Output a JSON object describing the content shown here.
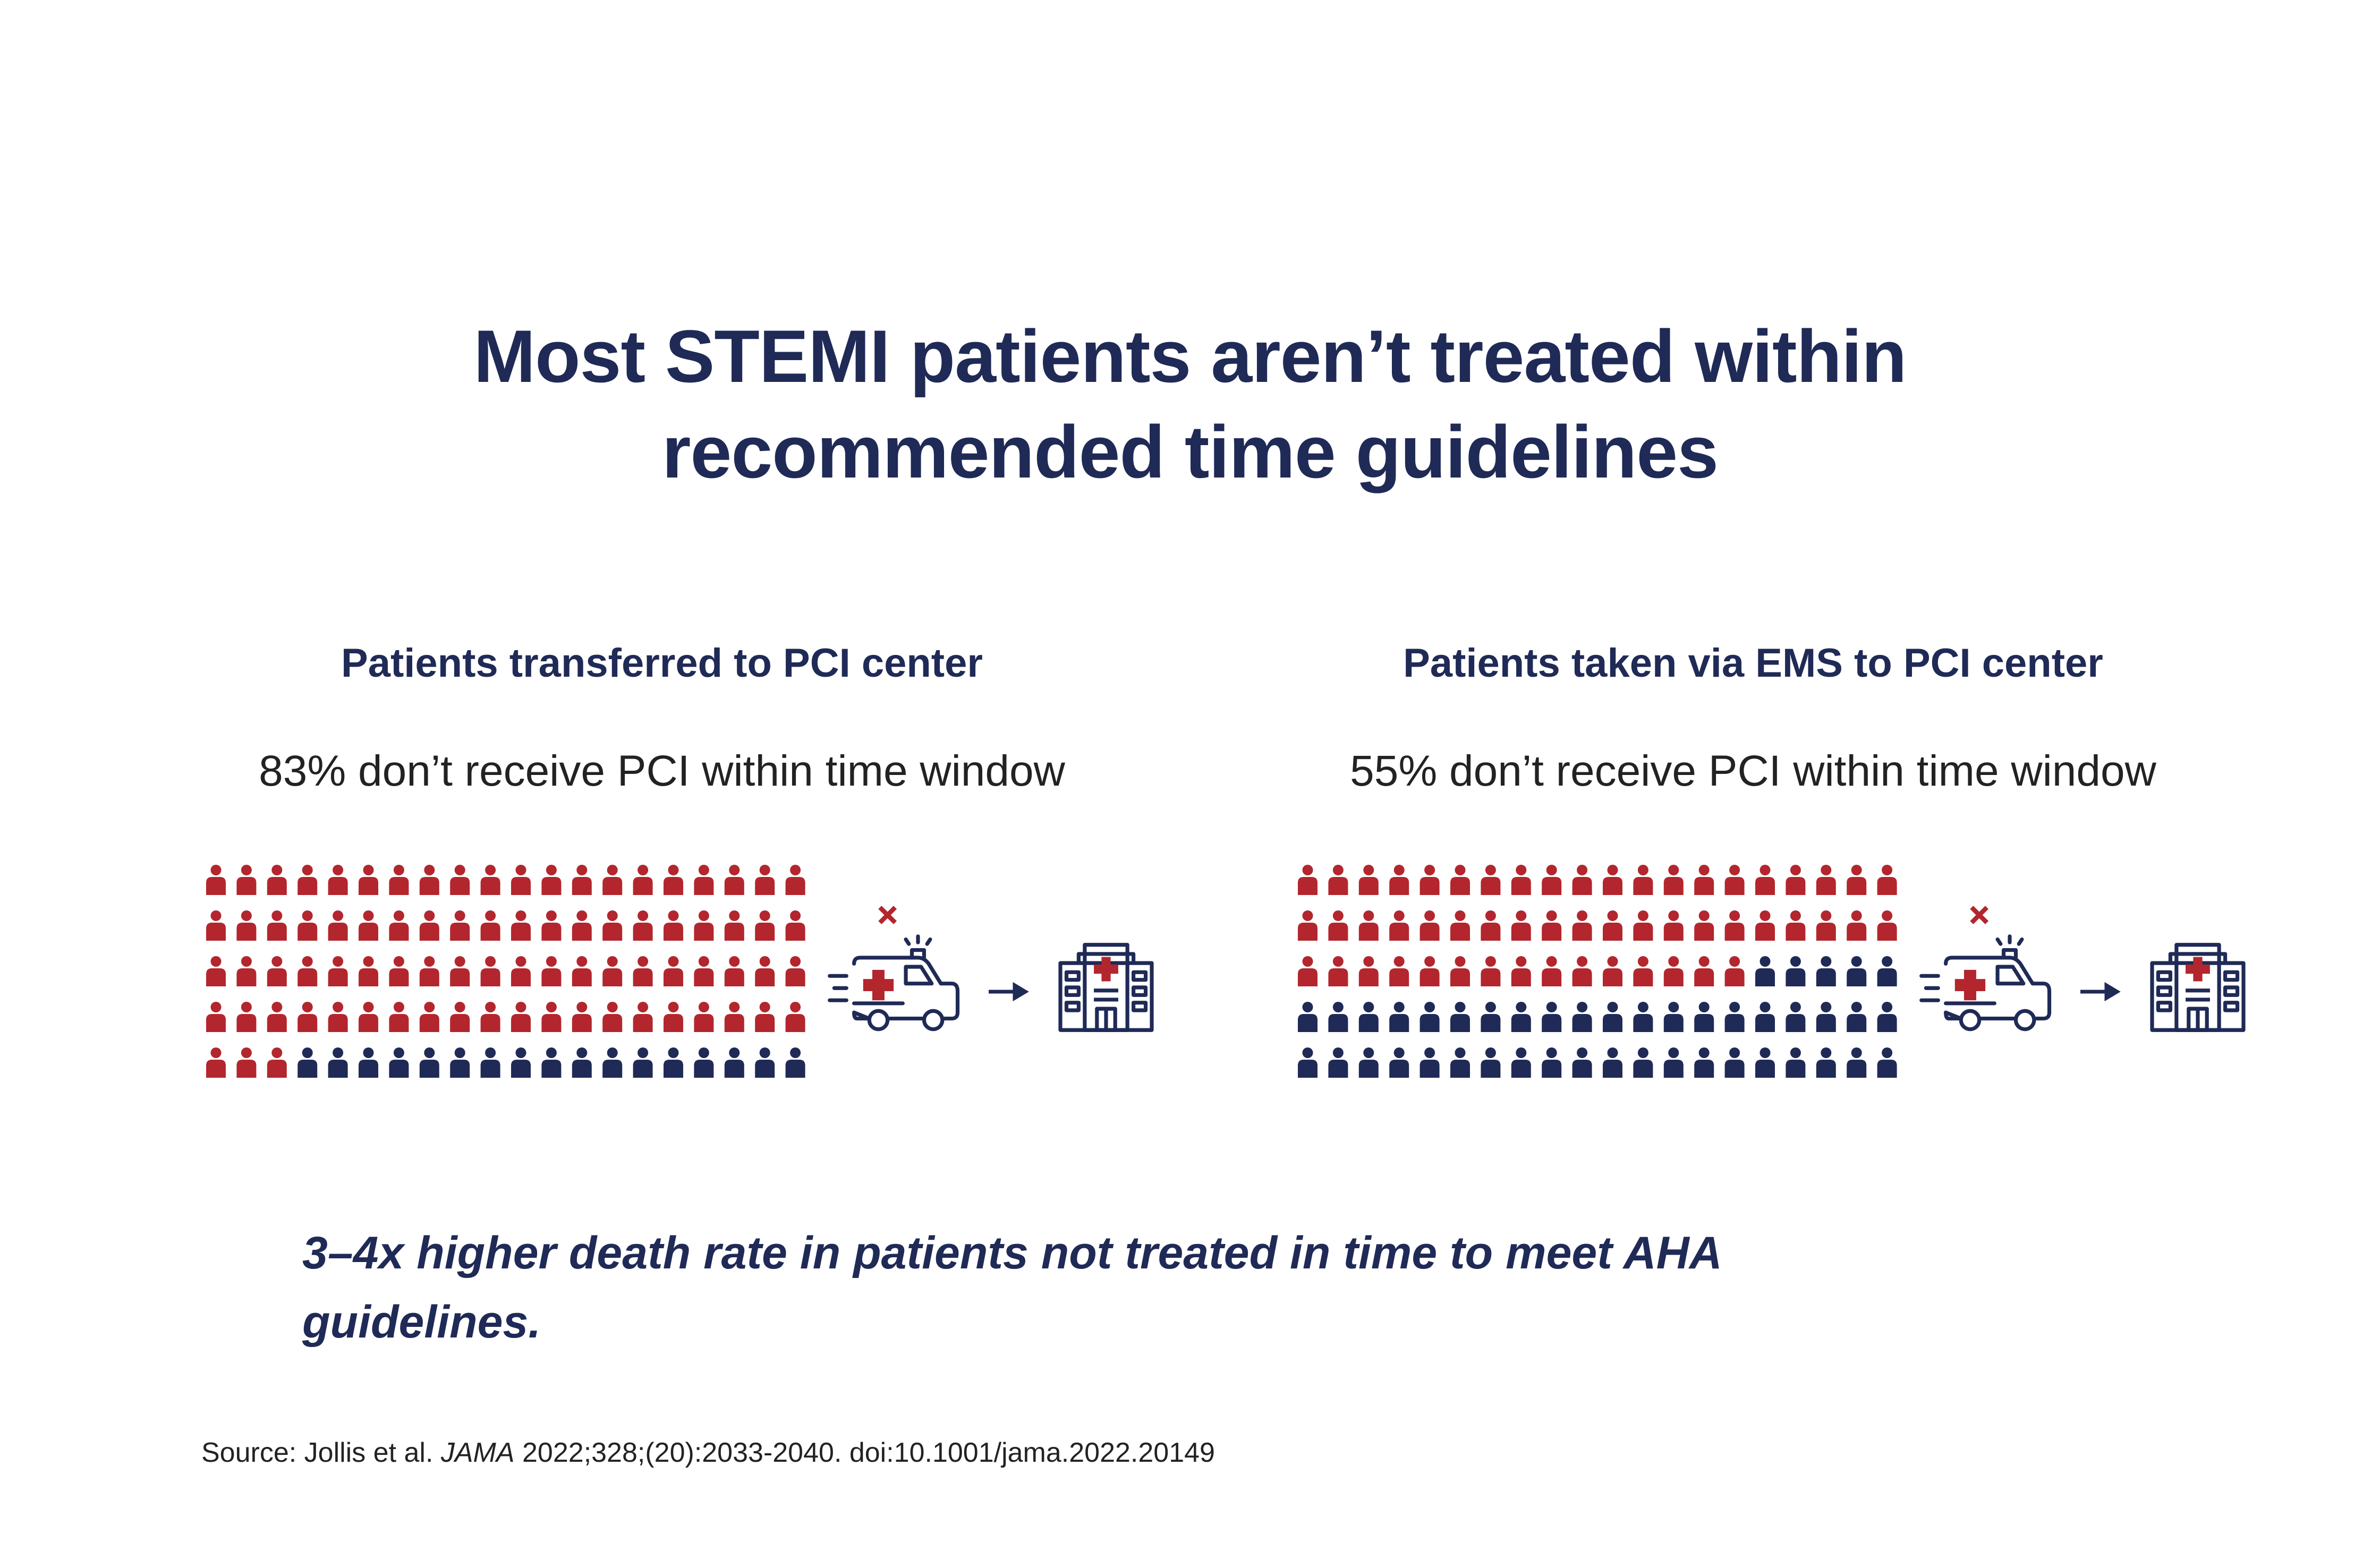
{
  "title": [
    "Most STEMI patients aren’t treated within",
    "recommended time guidelines"
  ],
  "chart_data": [
    {
      "type": "waffle",
      "title": "Patients transferred to PCI center",
      "subtitle": "83% don’t receive PCI within time window",
      "values": [
        83,
        17
      ],
      "colors": [
        "#b3262d",
        "#1f2a56"
      ]
    },
    {
      "type": "waffle",
      "title": "Patients taken via EMS to PCI center",
      "subtitle": "55% don’t receive PCI within time window",
      "values": [
        55,
        45
      ],
      "colors": [
        "#b3262d",
        "#1f2a56"
      ]
    }
  ],
  "footnote": [
    "3–4x higher death rate in patients not treated in time to meet AHA",
    "guidelines."
  ],
  "source": {
    "prefix": "Source: Jollis et al. ",
    "journal": "JAMA",
    "citation": " 2022;328;(20):2033-2040. doi:10.1001/jama.2022.20149"
  }
}
